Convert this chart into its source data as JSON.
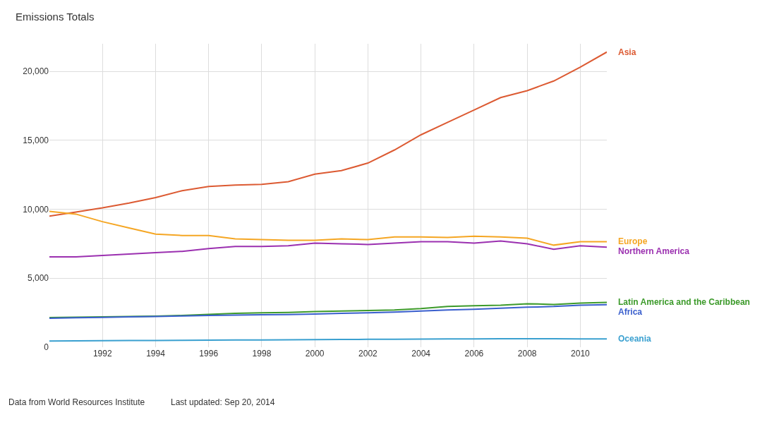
{
  "chart_data": {
    "type": "line",
    "title": "Emissions Totals",
    "x": [
      1990,
      1991,
      1992,
      1993,
      1994,
      1995,
      1996,
      1997,
      1998,
      1999,
      2000,
      2001,
      2002,
      2003,
      2004,
      2005,
      2006,
      2007,
      2008,
      2009,
      2010,
      2011
    ],
    "series": [
      {
        "name": "Asia",
        "color": "#dc5a32",
        "values": [
          9500,
          9800,
          10100,
          10450,
          10850,
          11350,
          11650,
          11750,
          11800,
          12000,
          12550,
          12800,
          13350,
          14300,
          15400,
          16300,
          17200,
          18100,
          18600,
          19300,
          20300,
          21400
        ]
      },
      {
        "name": "Europe",
        "color": "#f5a623",
        "values": [
          9850,
          9650,
          9100,
          8650,
          8200,
          8100,
          8100,
          7850,
          7800,
          7750,
          7750,
          7850,
          7800,
          8000,
          8000,
          7950,
          8050,
          8000,
          7900,
          7400,
          7650,
          7650
        ]
      },
      {
        "name": "Northern America",
        "color": "#9b30b0",
        "values": [
          6550,
          6550,
          6650,
          6750,
          6850,
          6950,
          7150,
          7300,
          7300,
          7350,
          7550,
          7500,
          7450,
          7550,
          7650,
          7650,
          7550,
          7700,
          7500,
          7100,
          7350,
          7250
        ]
      },
      {
        "name": "Latin America and the Caribbean",
        "color": "#3c9a2a",
        "values": [
          2150,
          2180,
          2200,
          2220,
          2250,
          2300,
          2380,
          2450,
          2500,
          2520,
          2580,
          2620,
          2660,
          2700,
          2800,
          2950,
          3000,
          3050,
          3150,
          3100,
          3200,
          3250
        ]
      },
      {
        "name": "Africa",
        "color": "#3a5fcd",
        "values": [
          2100,
          2130,
          2160,
          2200,
          2230,
          2270,
          2300,
          2330,
          2350,
          2370,
          2400,
          2450,
          2500,
          2550,
          2620,
          2700,
          2750,
          2830,
          2900,
          2950,
          3050,
          3080
        ]
      },
      {
        "name": "Oceania",
        "color": "#3aa0d0",
        "values": [
          450,
          460,
          470,
          480,
          490,
          500,
          510,
          520,
          530,
          540,
          550,
          560,
          570,
          580,
          590,
          600,
          600,
          610,
          620,
          610,
          600,
          600
        ]
      }
    ],
    "xlim": [
      1990,
      2011
    ],
    "xticks": [
      1992,
      1994,
      1996,
      1998,
      2000,
      2002,
      2004,
      2006,
      2008,
      2010
    ],
    "ylim": [
      0,
      22000
    ],
    "yticks": [
      {
        "value": 0,
        "label": "0"
      },
      {
        "value": 5000,
        "label": "5,000"
      },
      {
        "value": 10000,
        "label": "10,000"
      },
      {
        "value": 15000,
        "label": "15,000"
      },
      {
        "value": 20000,
        "label": "20,000"
      }
    ],
    "grid": true,
    "legend": false,
    "marker": "none",
    "line_style": "solid",
    "annotations": [
      "Data from World Resources Institute",
      "Last updated: Sep 20, 2014"
    ]
  }
}
